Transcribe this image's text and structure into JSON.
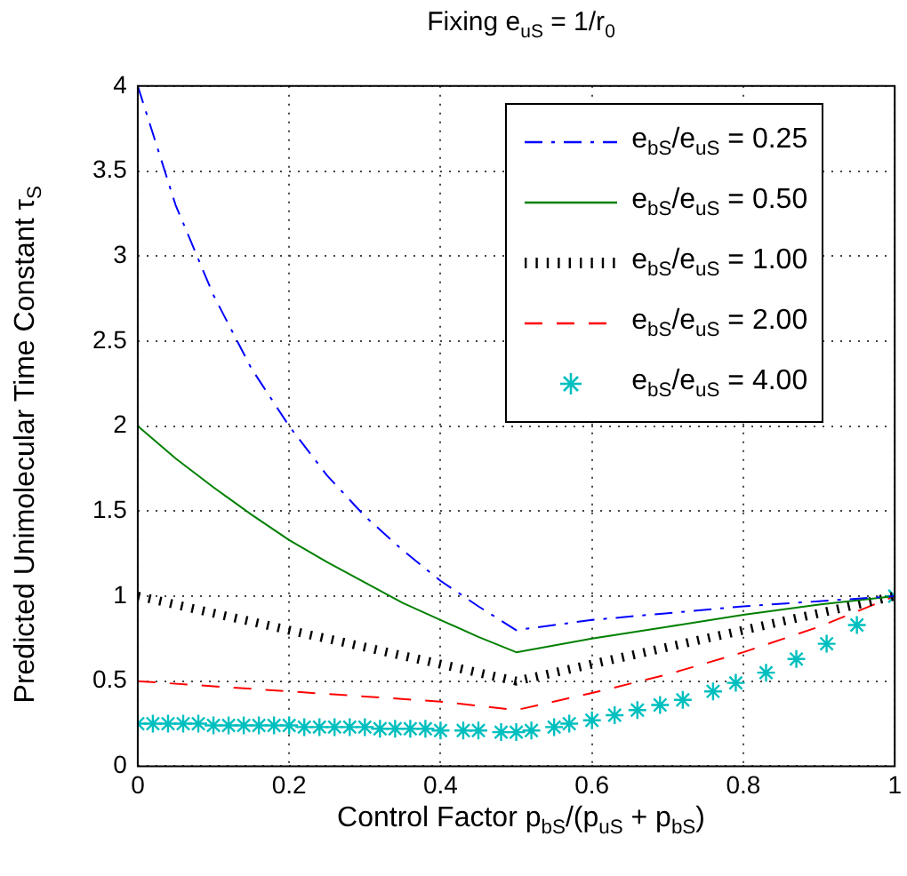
{
  "chart_data": {
    "type": "line",
    "title": "Fixing e$_{uS}$ = 1/r$_{0}$",
    "xlabel": "Control Factor p$_{bS}$/(p$_{uS}$ + p$_{bS}$)",
    "ylabel": "Predicted Unimolecular Time Constant τ$_{S}$",
    "xlim": [
      0,
      1
    ],
    "xticks": [
      0,
      0.2,
      0.4,
      0.6,
      0.8,
      1
    ],
    "ylim": [
      0,
      4
    ],
    "yticks": [
      0,
      0.5,
      1,
      1.5,
      2,
      2.5,
      3,
      3.5,
      4
    ],
    "grid": true,
    "legend": "top right",
    "series": [
      {
        "name": "e$_{bS}$/e$_{uS}$ = 0.25",
        "color": "#0000ff",
        "line_style": "dashdot",
        "marker": "none",
        "x": [
          0,
          0.05,
          0.1,
          0.15,
          0.2,
          0.25,
          0.3,
          0.35,
          0.4,
          0.45,
          0.5,
          0.6,
          0.7,
          0.8,
          0.9,
          1
        ],
        "values": [
          4,
          3.3,
          2.77,
          2.34,
          2,
          1.71,
          1.47,
          1.27,
          1.09,
          0.94,
          0.8,
          0.86,
          0.9,
          0.94,
          0.97,
          1
        ]
      },
      {
        "name": "e$_{bS}$/e$_{uS}$ = 0.50",
        "color": "#008000",
        "line_style": "solid",
        "marker": "none",
        "x": [
          0,
          0.05,
          0.1,
          0.15,
          0.2,
          0.25,
          0.3,
          0.35,
          0.4,
          0.45,
          0.5,
          0.6,
          0.7,
          0.8,
          0.9,
          1
        ],
        "values": [
          2,
          1.81,
          1.64,
          1.48,
          1.33,
          1.2,
          1.08,
          0.96,
          0.86,
          0.76,
          0.67,
          0.75,
          0.82,
          0.89,
          0.95,
          1
        ]
      },
      {
        "name": "e$_{bS}$/e$_{uS}$ = 1.00",
        "color": "#000000",
        "line_style": "dotted",
        "marker": "none",
        "x": [
          0,
          0.1,
          0.2,
          0.3,
          0.4,
          0.5,
          0.6,
          0.7,
          0.8,
          0.9,
          1
        ],
        "values": [
          1,
          0.9,
          0.8,
          0.7,
          0.6,
          0.5,
          0.6,
          0.7,
          0.8,
          0.9,
          1
        ]
      },
      {
        "name": "e$_{bS}$/e$_{uS}$ = 2.00",
        "color": "#ff0000",
        "line_style": "dashed",
        "marker": "none",
        "x": [
          0,
          0.1,
          0.2,
          0.3,
          0.4,
          0.5,
          0.6,
          0.7,
          0.8,
          0.9,
          1
        ],
        "values": [
          0.5,
          0.47,
          0.44,
          0.41,
          0.38,
          0.33,
          0.43,
          0.54,
          0.67,
          0.82,
          1
        ]
      },
      {
        "name": "e$_{bS}$/e$_{uS}$ = 4.00",
        "color": "#00bfbf",
        "type": "scatter",
        "marker": "cross",
        "x": [
          0,
          0.02,
          0.04,
          0.06,
          0.08,
          0.1,
          0.12,
          0.14,
          0.16,
          0.18,
          0.2,
          0.22,
          0.24,
          0.26,
          0.28,
          0.3,
          0.32,
          0.34,
          0.36,
          0.38,
          0.4,
          0.43,
          0.45,
          0.48,
          0.5,
          0.52,
          0.55,
          0.57,
          0.6,
          0.63,
          0.66,
          0.69,
          0.72,
          0.76,
          0.79,
          0.83,
          0.87,
          0.91,
          0.95,
          1
        ],
        "values": [
          0.25,
          0.25,
          0.25,
          0.25,
          0.25,
          0.24,
          0.24,
          0.24,
          0.24,
          0.24,
          0.24,
          0.23,
          0.23,
          0.23,
          0.23,
          0.23,
          0.22,
          0.22,
          0.22,
          0.22,
          0.21,
          0.21,
          0.21,
          0.2,
          0.2,
          0.21,
          0.23,
          0.25,
          0.27,
          0.3,
          0.33,
          0.36,
          0.39,
          0.44,
          0.49,
          0.55,
          0.63,
          0.72,
          0.83,
          1
        ]
      }
    ]
  }
}
